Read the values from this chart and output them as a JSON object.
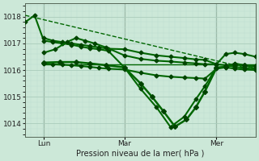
{
  "bg_color": "#cce8d8",
  "grid_color_major": "#aaccbb",
  "grid_color_minor": "#bbddd0",
  "line_color": "#006600",
  "marker_color": "#004400",
  "xlabel": "Pression niveau de la mer( hPa )",
  "ylim": [
    1013.5,
    1018.5
  ],
  "yticks": [
    1014,
    1015,
    1016,
    1017,
    1018
  ],
  "day_positions": [
    0.08,
    0.43,
    0.83
  ],
  "day_labels": [
    "Lun",
    "Mar",
    "Mer"
  ],
  "series": [
    {
      "x": [
        0.0,
        1.0
      ],
      "y": [
        1018.05,
        1016.0
      ],
      "lw": 1.0,
      "marker": null,
      "ms": 0,
      "linestyle": "--"
    },
    {
      "x": [
        0.08,
        1.0
      ],
      "y": [
        1016.22,
        1016.22
      ],
      "lw": 1.0,
      "marker": null,
      "ms": 0,
      "linestyle": "-"
    },
    {
      "x": [
        0.0,
        0.04,
        0.08,
        0.12,
        0.16,
        0.2,
        0.24,
        0.28,
        0.32,
        0.36,
        0.43,
        0.5,
        0.57,
        0.63,
        0.69,
        0.74,
        0.78,
        0.83,
        0.87,
        0.91,
        0.95,
        1.0
      ],
      "y": [
        1017.8,
        1018.05,
        1017.1,
        1017.05,
        1017.0,
        1016.95,
        1016.88,
        1016.82,
        1016.78,
        1016.72,
        1016.1,
        1015.3,
        1014.6,
        1013.87,
        1014.25,
        1014.9,
        1015.4,
        1016.1,
        1016.12,
        1016.25,
        1016.18,
        1016.05
      ],
      "lw": 1.5,
      "marker": "D",
      "ms": 2.5,
      "linestyle": "-"
    },
    {
      "x": [
        0.08,
        0.12,
        0.16,
        0.2,
        0.24,
        0.28,
        0.32,
        0.36,
        0.43,
        0.5,
        0.57,
        0.63,
        0.69,
        0.74,
        0.78,
        0.83,
        0.87,
        0.91,
        0.95,
        1.0
      ],
      "y": [
        1017.2,
        1017.1,
        1017.05,
        1017.0,
        1016.95,
        1016.9,
        1016.85,
        1016.8,
        1016.78,
        1016.65,
        1016.55,
        1016.5,
        1016.45,
        1016.4,
        1016.38,
        1016.22,
        1016.18,
        1016.12,
        1016.08,
        1016.02
      ],
      "lw": 1.5,
      "marker": "D",
      "ms": 2.5,
      "linestyle": "-"
    },
    {
      "x": [
        0.08,
        0.13,
        0.18,
        0.22,
        0.26,
        0.3,
        0.35,
        0.43,
        0.5,
        0.57,
        0.63,
        0.69,
        0.74,
        0.78,
        0.83,
        0.87,
        0.91,
        0.95,
        1.0
      ],
      "y": [
        1016.65,
        1016.78,
        1017.05,
        1017.2,
        1017.1,
        1017.0,
        1016.85,
        1016.55,
        1016.42,
        1016.35,
        1016.32,
        1016.28,
        1016.25,
        1016.22,
        1016.22,
        1016.6,
        1016.65,
        1016.6,
        1016.5
      ],
      "lw": 1.5,
      "marker": "D",
      "ms": 2.5,
      "linestyle": "-"
    },
    {
      "x": [
        0.08,
        0.12,
        0.16,
        0.2,
        0.24,
        0.28,
        0.32,
        0.36,
        0.43,
        0.5,
        0.57,
        0.63,
        0.69,
        0.74,
        0.78,
        0.83,
        0.87,
        0.91,
        0.95,
        1.0
      ],
      "y": [
        1016.25,
        1016.22,
        1016.2,
        1016.18,
        1016.15,
        1016.12,
        1016.08,
        1016.05,
        1016.02,
        1015.9,
        1015.8,
        1015.75,
        1015.72,
        1015.7,
        1015.68,
        1016.05,
        1016.1,
        1016.05,
        1016.02,
        1016.0
      ],
      "lw": 1.5,
      "marker": "D",
      "ms": 2.5,
      "linestyle": "-"
    },
    {
      "x": [
        0.08,
        0.15,
        0.22,
        0.28,
        0.35,
        0.43,
        0.5,
        0.55,
        0.6,
        0.65,
        0.7,
        0.74,
        0.78,
        0.83,
        0.87,
        0.91,
        0.95,
        1.0
      ],
      "y": [
        1016.28,
        1016.3,
        1016.3,
        1016.25,
        1016.18,
        1016.1,
        1015.5,
        1015.0,
        1014.45,
        1013.88,
        1014.15,
        1014.6,
        1015.2,
        1016.08,
        1016.12,
        1016.2,
        1016.18,
        1016.15
      ],
      "lw": 1.8,
      "marker": "D",
      "ms": 3.0,
      "linestyle": "-"
    }
  ]
}
